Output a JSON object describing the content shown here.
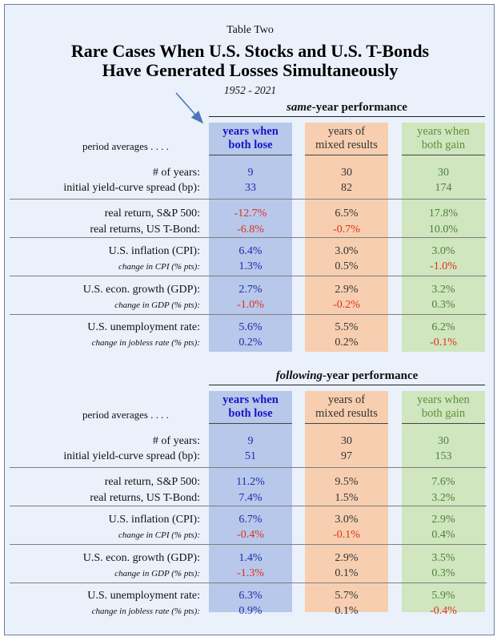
{
  "header": {
    "table_label": "Table Two",
    "title_line1": "Rare Cases When U.S. Stocks and U.S. T-Bonds",
    "title_line2": "Have Generated Losses Simultaneously",
    "years": "1952 - 2021"
  },
  "columns": [
    {
      "line1": "years when",
      "line2": "both lose"
    },
    {
      "line1": "years of",
      "line2": "mixed results"
    },
    {
      "line1": "years when",
      "line2": "both gain"
    }
  ],
  "period_averages_label": "period averages . . . .",
  "colors": {
    "both_lose_bg": "#b7c8ea",
    "mixed_bg": "#f7cfb0",
    "both_gain_bg": "#cfe6bf",
    "negative": "#e0301e",
    "page_bg": "#eaf1fb"
  },
  "sections": [
    {
      "title_em": "same",
      "title_rest": "-year performance",
      "rows": [
        {
          "label": "# of years:",
          "small": false,
          "values": [
            "9",
            "30",
            "30"
          ]
        },
        {
          "label": "initial yield-curve spread (bp):",
          "small": false,
          "values": [
            "33",
            "82",
            "174"
          ]
        },
        {
          "label": "real return, S&P 500:",
          "small": false,
          "values": [
            "-12.7%",
            "6.5%",
            "17.8%"
          ]
        },
        {
          "label": "real returns, US T-Bond:",
          "small": false,
          "values": [
            "-6.8%",
            "-0.7%",
            "10.0%"
          ]
        },
        {
          "label": "U.S. inflation (CPI):",
          "small": false,
          "values": [
            "6.4%",
            "3.0%",
            "3.0%"
          ]
        },
        {
          "label": "change in CPI (% pts):",
          "small": true,
          "values": [
            "1.3%",
            "0.5%",
            "-1.0%"
          ]
        },
        {
          "label": "U.S. econ. growth (GDP):",
          "small": false,
          "values": [
            "2.7%",
            "2.9%",
            "3.2%"
          ]
        },
        {
          "label": "change in GDP (% pts):",
          "small": true,
          "values": [
            "-1.0%",
            "-0.2%",
            "0.3%"
          ]
        },
        {
          "label": "U.S. unemployment rate:",
          "small": false,
          "values": [
            "5.6%",
            "5.5%",
            "6.2%"
          ]
        },
        {
          "label": "change in jobless rate (% pts):",
          "small": true,
          "values": [
            "0.2%",
            "0.2%",
            "-0.1%"
          ]
        }
      ]
    },
    {
      "title_em": "following",
      "title_rest": "-year performance",
      "rows": [
        {
          "label": "# of years:",
          "small": false,
          "values": [
            "9",
            "30",
            "30"
          ]
        },
        {
          "label": "initial yield-curve spread (bp):",
          "small": false,
          "values": [
            "51",
            "97",
            "153"
          ]
        },
        {
          "label": "real return, S&P 500:",
          "small": false,
          "values": [
            "11.2%",
            "9.5%",
            "7.6%"
          ]
        },
        {
          "label": "real returns, US T-Bond:",
          "small": false,
          "values": [
            "7.4%",
            "1.5%",
            "3.2%"
          ]
        },
        {
          "label": "U.S. inflation (CPI):",
          "small": false,
          "values": [
            "6.7%",
            "3.0%",
            "2.9%"
          ]
        },
        {
          "label": "change in CPI (% pts):",
          "small": true,
          "values": [
            "-0.4%",
            "-0.1%",
            "0.4%"
          ]
        },
        {
          "label": "U.S. econ. growth (GDP):",
          "small": false,
          "values": [
            "1.4%",
            "2.9%",
            "3.5%"
          ]
        },
        {
          "label": "change in GDP (% pts):",
          "small": true,
          "values": [
            "-1.3%",
            "0.1%",
            "0.3%"
          ]
        },
        {
          "label": "U.S. unemployment rate:",
          "small": false,
          "values": [
            "6.3%",
            "5.7%",
            "5.9%"
          ]
        },
        {
          "label": "change in jobless rate (% pts):",
          "small": true,
          "values": [
            "0.9%",
            "0.1%",
            "-0.4%"
          ]
        }
      ]
    }
  ]
}
